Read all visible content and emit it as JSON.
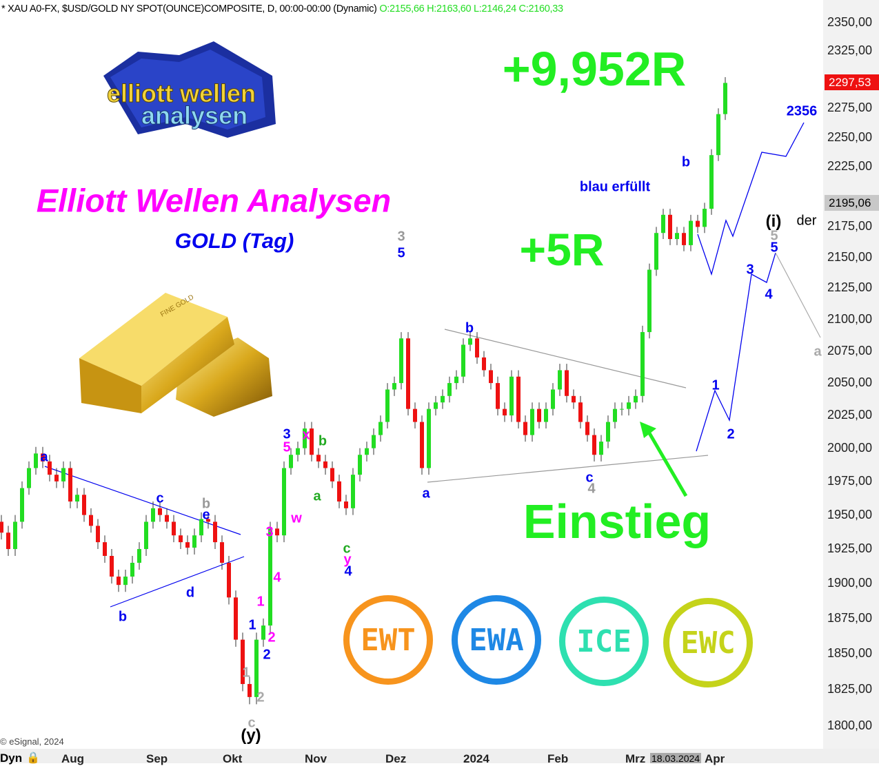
{
  "header": {
    "title": "* XAU A0-FX, $USD/GOLD NY SPOT(OUNCE)COMPOSITE, D, 00:00-00:00 (Dynamic)",
    "ohlc": "O:2155,66 H:2163,60 L:2146,24 C:2160,33"
  },
  "copyright": "© eSignal, 2024",
  "brand": {
    "logo_text_1": "elliott wellen",
    "logo_text_2": "analysen",
    "title": "Elliott Wellen Analysen",
    "subtitle": "GOLD (Tag)",
    "gold_bar_text": "FINE GOLD"
  },
  "headlines": {
    "total_r": "+9,952R",
    "r5": "+5R",
    "entry": "Einstieg"
  },
  "badges": [
    {
      "text": "EWT",
      "color": "#f7941d"
    },
    {
      "text": "EWA",
      "color": "#1e88e5"
    },
    {
      "text": "ICE",
      "color": "#2ee0b0"
    },
    {
      "text": "EWC",
      "color": "#c5d31a"
    }
  ],
  "price_tags": {
    "last": "2297,53",
    "last_color": "#ee1111",
    "cursor": "2195,06"
  },
  "bottom": {
    "dyn": "Dyn",
    "cursor_date": "18.03.2024"
  },
  "colors": {
    "up": "#22dd22",
    "down": "#ee1111",
    "wave_blue": "#0000ee",
    "magenta": "#ff00ff",
    "green": "#22aa22",
    "gray": "#999999"
  },
  "chart_data": {
    "type": "candlestick",
    "y_scale": "log",
    "ylim": [
      1790,
      2360
    ],
    "y_ticks": [
      "2350,00",
      "2325,00",
      "2275,00",
      "2250,00",
      "2225,00",
      "2175,00",
      "2150,00",
      "2125,00",
      "2100,00",
      "2075,00",
      "2050,00",
      "2025,00",
      "2000,00",
      "1975,00",
      "1950,00",
      "1925,00",
      "1900,00",
      "1875,00",
      "1850,00",
      "1825,00",
      "1800,00"
    ],
    "x_ticks": [
      "Aug",
      "Sep",
      "Okt",
      "Nov",
      "Dez",
      "2024",
      "Feb",
      "Mrz",
      "Apr"
    ],
    "closes": [
      1937,
      1925,
      1945,
      1970,
      1985,
      1996,
      1990,
      1980,
      1975,
      1985,
      1960,
      1965,
      1950,
      1942,
      1930,
      1920,
      1905,
      1899,
      1905,
      1915,
      1925,
      1945,
      1955,
      1950,
      1945,
      1935,
      1930,
      1926,
      1935,
      1947,
      1945,
      1930,
      1915,
      1890,
      1860,
      1829,
      1820,
      1860,
      1870,
      1940,
      1935,
      1985,
      1995,
      2000,
      2015,
      1995,
      1990,
      1985,
      1975,
      1960,
      1955,
      1980,
      1995,
      2000,
      2010,
      2020,
      2045,
      2050,
      2085,
      2030,
      2020,
      1985,
      2030,
      2035,
      2040,
      2050,
      2055,
      2080,
      2085,
      2070,
      2060,
      2050,
      2030,
      2025,
      2055,
      2020,
      2010,
      2030,
      2020,
      2030,
      2045,
      2060,
      2040,
      2035,
      2020,
      2010,
      1995,
      2005,
      2020,
      2030,
      2030,
      2035,
      2040,
      2090,
      2140,
      2170,
      2185,
      2165,
      2170,
      2160,
      2180,
      2175,
      2190,
      2235,
      2270,
      2297
    ],
    "wave_labels": [
      {
        "text": "a",
        "color": "#0000ee"
      },
      {
        "text": "b",
        "color": "#0000ee"
      },
      {
        "text": "c",
        "color": "#0000ee"
      },
      {
        "text": "d",
        "color": "#0000ee"
      },
      {
        "text": "b",
        "color": "#999999"
      },
      {
        "text": "e",
        "color": "#0000ee"
      },
      {
        "text": "1",
        "color": "#aaaaaa"
      },
      {
        "text": "2",
        "color": "#aaaaaa"
      },
      {
        "text": "c",
        "color": "#aaaaaa"
      },
      {
        "text": "(y)",
        "color": "#000000"
      },
      {
        "text": "1",
        "color": "#ff00ff"
      },
      {
        "text": "1",
        "color": "#0000ee"
      },
      {
        "text": "2",
        "color": "#ff00ff"
      },
      {
        "text": "2",
        "color": "#0000ee"
      },
      {
        "text": "3",
        "color": "#ff00ff"
      },
      {
        "text": "4",
        "color": "#ff00ff"
      },
      {
        "text": "3",
        "color": "#0000ee"
      },
      {
        "text": "5",
        "color": "#ff00ff"
      },
      {
        "text": "w",
        "color": "#ff00ff"
      },
      {
        "text": "x",
        "color": "#ff00ff"
      },
      {
        "text": "b",
        "color": "#22aa22"
      },
      {
        "text": "a",
        "color": "#22aa22"
      },
      {
        "text": "c",
        "color": "#22aa22"
      },
      {
        "text": "y",
        "color": "#ff00ff"
      },
      {
        "text": "4",
        "color": "#0000ee"
      },
      {
        "text": "3",
        "color": "#999999"
      },
      {
        "text": "5",
        "color": "#0000ee"
      },
      {
        "text": "a",
        "color": "#0000ee"
      },
      {
        "text": "b",
        "color": "#0000ee"
      },
      {
        "text": "c",
        "color": "#0000ee"
      },
      {
        "text": "4",
        "color": "#999999"
      },
      {
        "text": "blau erfüllt",
        "color": "#0000ee"
      },
      {
        "text": "b",
        "color": "#0000ee"
      },
      {
        "text": "2356",
        "color": "#0000ee"
      },
      {
        "text": "(i)",
        "color": "#000000"
      },
      {
        "text": "der",
        "color": "#000000"
      },
      {
        "text": "5",
        "color": "#aaaaaa"
      },
      {
        "text": "5",
        "color": "#0000ee"
      },
      {
        "text": "3",
        "color": "#0000ee"
      },
      {
        "text": "4",
        "color": "#0000ee"
      },
      {
        "text": "1",
        "color": "#0000ee"
      },
      {
        "text": "2",
        "color": "#0000ee"
      },
      {
        "text": "a",
        "color": "#aaaaaa"
      }
    ]
  }
}
